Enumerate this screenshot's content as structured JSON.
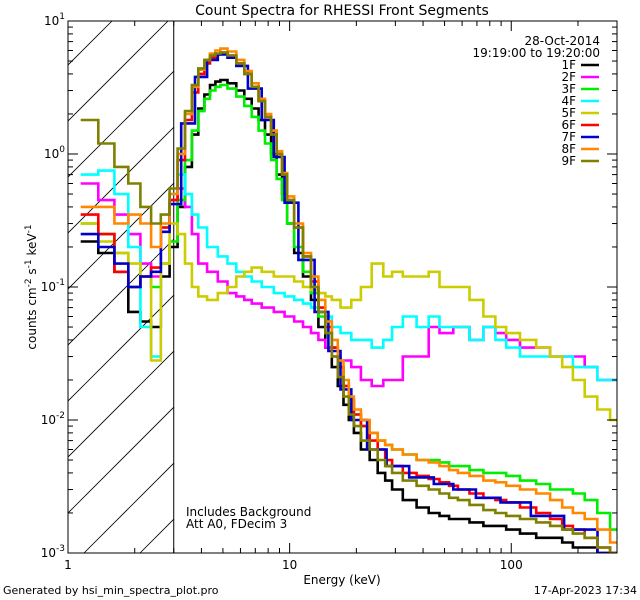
{
  "chart_data": {
    "type": "line",
    "title": "Count Spectra for RHESSI Front Segments",
    "xlabel": "Energy (keV)",
    "ylabel_parts": [
      "counts cm",
      "-2",
      " s",
      "-1",
      " keV",
      "-1"
    ],
    "x_scale": "log",
    "y_scale": "log",
    "xlim": [
      1,
      300
    ],
    "ylim": [
      0.001,
      10
    ],
    "x_ticks": [
      {
        "value": 1,
        "label": "1"
      },
      {
        "value": 10,
        "label": "10"
      },
      {
        "value": 100,
        "label": "100"
      }
    ],
    "y_ticks": [
      {
        "value": 0.001,
        "base": "10",
        "exp": "-3"
      },
      {
        "value": 0.01,
        "base": "10",
        "exp": "-2"
      },
      {
        "value": 0.1,
        "base": "10",
        "exp": "-1"
      },
      {
        "value": 1,
        "base": "10",
        "exp": "0"
      },
      {
        "value": 10,
        "base": "10",
        "exp": "1"
      }
    ],
    "excluded_region": {
      "from": 1,
      "to": 3
    },
    "legend": {
      "position": "top-right",
      "date": "28-Oct-2014",
      "time_range": "19:19:00 to 19:20:00",
      "entries": [
        {
          "name": "1F",
          "color": "#000000"
        },
        {
          "name": "2F",
          "color": "#ff00ff"
        },
        {
          "name": "3F",
          "color": "#00ee00"
        },
        {
          "name": "4F",
          "color": "#00ffff"
        },
        {
          "name": "5F",
          "color": "#cccc00"
        },
        {
          "name": "6F",
          "color": "#ff0000"
        },
        {
          "name": "7F",
          "color": "#0000cc"
        },
        {
          "name": "8F",
          "color": "#ff8800"
        },
        {
          "name": "9F",
          "color": "#808000"
        }
      ]
    },
    "annotations": [
      "Includes Background",
      "Att A0, FDecim 3"
    ],
    "series": [
      {
        "name": "1F",
        "x": [
          1.25,
          1.5,
          1.75,
          2,
          2.25,
          2.5,
          2.75,
          3,
          3.25,
          3.5,
          3.75,
          4,
          4.25,
          4.5,
          4.75,
          5,
          5.5,
          6,
          6.5,
          7,
          7.5,
          8,
          8.5,
          9,
          9.5,
          10,
          11,
          12,
          13,
          14,
          15,
          16,
          17,
          18,
          19,
          20,
          22,
          24,
          26,
          28,
          30,
          35,
          40,
          45,
          50,
          55,
          60,
          70,
          80,
          90,
          100,
          120,
          140,
          160,
          180,
          200,
          230,
          260,
          300
        ],
        "y": [
          0.22,
          0.18,
          0.13,
          0.065,
          0.055,
          0.05,
          0.12,
          0.2,
          0.4,
          0.8,
          1.4,
          2.2,
          2.8,
          3.3,
          3.5,
          3.6,
          3.4,
          3.0,
          2.6,
          2.2,
          1.8,
          1.4,
          1.0,
          0.7,
          0.5,
          0.3,
          0.18,
          0.12,
          0.08,
          0.05,
          0.035,
          0.025,
          0.018,
          0.013,
          0.01,
          0.008,
          0.006,
          0.005,
          0.004,
          0.0035,
          0.003,
          0.0025,
          0.0022,
          0.002,
          0.0019,
          0.0018,
          0.0018,
          0.0017,
          0.0016,
          0.0016,
          0.0015,
          0.0014,
          0.0013,
          0.0013,
          0.0012,
          0.0011,
          0.0011,
          0.001,
          0.001
        ]
      },
      {
        "name": "2F",
        "x": [
          1.25,
          1.5,
          1.75,
          2,
          2.25,
          2.5,
          2.75,
          3,
          3.25,
          3.5,
          3.75,
          4,
          4.5,
          5,
          5.5,
          6,
          6.5,
          7,
          8,
          9,
          10,
          11,
          12,
          13,
          14,
          15,
          16,
          18,
          20,
          22,
          25,
          28,
          30,
          35,
          40,
          45,
          50,
          60,
          70,
          80,
          90,
          100,
          120,
          140,
          160,
          180,
          200,
          230,
          260,
          300
        ],
        "y": [
          0.6,
          0.45,
          0.35,
          0.25,
          0.15,
          0.12,
          0.28,
          0.45,
          0.55,
          0.4,
          0.25,
          0.15,
          0.13,
          0.11,
          0.09,
          0.085,
          0.08,
          0.075,
          0.07,
          0.065,
          0.06,
          0.055,
          0.05,
          0.045,
          0.04,
          0.035,
          0.03,
          0.028,
          0.025,
          0.02,
          0.018,
          0.02,
          0.02,
          0.03,
          0.03,
          0.05,
          0.045,
          0.05,
          0.04,
          0.05,
          0.045,
          0.04,
          0.035,
          0.035,
          0.03,
          0.03,
          0.03,
          0.025,
          0.02,
          0.02
        ]
      },
      {
        "name": "3F",
        "x": [
          1.25,
          1.5,
          1.75,
          2,
          2.25,
          2.5,
          2.75,
          3,
          3.25,
          3.5,
          3.75,
          4,
          4.25,
          4.5,
          4.75,
          5,
          5.5,
          6,
          6.5,
          7,
          7.5,
          8,
          8.5,
          9,
          9.5,
          10,
          11,
          12,
          13,
          14,
          15,
          16,
          17,
          18,
          19,
          20,
          22,
          24,
          26,
          28,
          30,
          35,
          40,
          45,
          50,
          55,
          60,
          70,
          80,
          90,
          100,
          120,
          140,
          160,
          180,
          200,
          230,
          260,
          300
        ],
        "y": [
          0.3,
          0.25,
          0.18,
          0.1,
          0.12,
          0.1,
          0.15,
          0.22,
          0.45,
          0.9,
          1.5,
          2.1,
          2.6,
          3.0,
          3.2,
          3.3,
          3.1,
          2.7,
          2.3,
          1.9,
          1.5,
          1.2,
          0.9,
          0.65,
          0.45,
          0.3,
          0.2,
          0.13,
          0.09,
          0.06,
          0.045,
          0.035,
          0.025,
          0.018,
          0.014,
          0.011,
          0.009,
          0.008,
          0.007,
          0.0065,
          0.006,
          0.0055,
          0.005,
          0.005,
          0.0048,
          0.0045,
          0.0045,
          0.0042,
          0.004,
          0.004,
          0.0038,
          0.0035,
          0.0033,
          0.003,
          0.003,
          0.0028,
          0.0025,
          0.002,
          0.0015
        ]
      },
      {
        "name": "4F",
        "x": [
          1.25,
          1.5,
          1.75,
          2,
          2.25,
          2.5,
          2.75,
          3,
          3.25,
          3.5,
          3.75,
          4,
          4.5,
          5,
          5.5,
          6,
          6.5,
          7,
          8,
          9,
          10,
          11,
          12,
          13,
          14,
          15,
          16,
          18,
          20,
          22,
          25,
          28,
          30,
          35,
          40,
          45,
          50,
          60,
          70,
          80,
          90,
          100,
          120,
          140,
          160,
          180,
          200,
          230,
          260,
          300
        ],
        "y": [
          0.7,
          0.75,
          0.5,
          0.2,
          0.05,
          0.03,
          0.28,
          0.5,
          0.7,
          0.5,
          0.35,
          0.28,
          0.2,
          0.17,
          0.15,
          0.13,
          0.12,
          0.11,
          0.1,
          0.09,
          0.085,
          0.08,
          0.075,
          0.07,
          0.065,
          0.06,
          0.05,
          0.045,
          0.04,
          0.04,
          0.035,
          0.04,
          0.05,
          0.06,
          0.05,
          0.06,
          0.05,
          0.05,
          0.04,
          0.05,
          0.04,
          0.035,
          0.03,
          0.03,
          0.03,
          0.03,
          0.025,
          0.025,
          0.02,
          0.02
        ]
      },
      {
        "name": "5F",
        "x": [
          1.25,
          1.5,
          1.75,
          2,
          2.25,
          2.5,
          2.75,
          3,
          3.25,
          3.5,
          3.75,
          4,
          4.5,
          5,
          5.5,
          6,
          6.5,
          7,
          8,
          9,
          10,
          11,
          12,
          13,
          14,
          15,
          16,
          18,
          20,
          22,
          25,
          28,
          30,
          35,
          40,
          45,
          50,
          60,
          70,
          80,
          90,
          100,
          120,
          140,
          160,
          180,
          200,
          230,
          260,
          300
        ],
        "y": [
          0.3,
          0.22,
          0.18,
          0.15,
          0.12,
          0.028,
          0.15,
          0.3,
          0.25,
          0.15,
          0.1,
          0.085,
          0.08,
          0.09,
          0.1,
          0.12,
          0.13,
          0.14,
          0.13,
          0.12,
          0.12,
          0.11,
          0.1,
          0.095,
          0.09,
          0.085,
          0.08,
          0.07,
          0.08,
          0.1,
          0.15,
          0.12,
          0.13,
          0.12,
          0.12,
          0.13,
          0.1,
          0.1,
          0.08,
          0.06,
          0.05,
          0.045,
          0.04,
          0.035,
          0.03,
          0.025,
          0.02,
          0.015,
          0.012,
          0.01
        ]
      },
      {
        "name": "6F",
        "x": [
          1.25,
          1.5,
          1.75,
          2,
          2.25,
          2.5,
          2.75,
          3,
          3.25,
          3.5,
          3.75,
          4,
          4.25,
          4.5,
          4.75,
          5,
          5.5,
          6,
          6.5,
          7,
          7.5,
          8,
          8.5,
          9,
          9.5,
          10,
          11,
          12,
          13,
          14,
          15,
          16,
          17,
          18,
          19,
          20,
          22,
          24,
          26,
          28,
          30,
          35,
          40,
          45,
          50,
          55,
          60,
          70,
          80,
          90,
          100,
          120,
          140,
          160,
          180,
          200,
          230,
          260,
          300
        ],
        "y": [
          0.35,
          0.25,
          0.13,
          0.1,
          0.12,
          0.14,
          0.28,
          0.45,
          0.9,
          1.8,
          2.9,
          4.0,
          4.8,
          5.3,
          5.6,
          5.8,
          5.5,
          4.8,
          4.0,
          3.2,
          2.5,
          1.9,
          1.4,
          1.0,
          0.7,
          0.45,
          0.28,
          0.17,
          0.11,
          0.07,
          0.05,
          0.035,
          0.025,
          0.018,
          0.014,
          0.011,
          0.009,
          0.007,
          0.006,
          0.005,
          0.0045,
          0.004,
          0.0038,
          0.0036,
          0.0034,
          0.0032,
          0.003,
          0.0028,
          0.0026,
          0.0025,
          0.0024,
          0.0022,
          0.002,
          0.0018,
          0.0016,
          0.0015,
          0.0013,
          0.0011,
          0.001
        ]
      },
      {
        "name": "7F",
        "x": [
          1.25,
          1.5,
          1.75,
          2,
          2.25,
          2.5,
          2.75,
          3,
          3.5,
          4,
          4.5,
          5,
          5.5,
          6,
          7,
          8,
          9,
          10,
          12,
          14,
          16,
          18,
          20,
          25,
          30,
          40,
          50,
          60,
          80,
          100,
          150,
          200,
          300
        ],
        "y": [
          0.25,
          0.2,
          0.15,
          0.1,
          0.12,
          0.13,
          0.26,
          0.42,
          1.7,
          3.8,
          5.1,
          5.6,
          5.3,
          4.6,
          3.1,
          1.8,
          0.95,
          0.43,
          0.16,
          0.065,
          0.033,
          0.017,
          0.01,
          0.006,
          0.0045,
          0.0037,
          0.0033,
          0.003,
          0.0026,
          0.0024,
          0.0019,
          0.0015,
          0.001
        ]
      },
      {
        "name": "8F",
        "x": [
          1.25,
          1.5,
          1.75,
          2,
          2.25,
          2.5,
          2.75,
          3,
          3.25,
          3.5,
          3.75,
          4,
          4.25,
          4.5,
          4.75,
          5,
          5.5,
          6,
          6.5,
          7,
          7.5,
          8,
          8.5,
          9,
          9.5,
          10,
          11,
          12,
          13,
          14,
          15,
          16,
          17,
          18,
          19,
          20,
          22,
          24,
          26,
          28,
          30,
          35,
          40,
          45,
          50,
          55,
          60,
          70,
          80,
          90,
          100,
          120,
          140,
          160,
          180,
          200,
          230,
          260,
          300
        ],
        "y": [
          0.4,
          0.4,
          0.3,
          0.35,
          0.3,
          0.2,
          0.3,
          0.5,
          1.0,
          2.0,
          3.2,
          4.3,
          5.1,
          5.7,
          6.0,
          6.2,
          5.9,
          5.1,
          4.2,
          3.4,
          2.6,
          2.0,
          1.5,
          1.05,
          0.72,
          0.48,
          0.3,
          0.18,
          0.12,
          0.08,
          0.055,
          0.04,
          0.028,
          0.02,
          0.015,
          0.012,
          0.01,
          0.008,
          0.007,
          0.0065,
          0.006,
          0.0055,
          0.005,
          0.0048,
          0.0045,
          0.0042,
          0.004,
          0.0038,
          0.0035,
          0.0034,
          0.0032,
          0.003,
          0.0028,
          0.0025,
          0.0022,
          0.002,
          0.0018,
          0.0015,
          0.0012
        ]
      },
      {
        "name": "9F",
        "x": [
          1.25,
          1.5,
          1.75,
          2,
          2.25,
          2.5,
          2.75,
          3,
          3.25,
          3.5,
          3.75,
          4,
          4.25,
          4.5,
          4.75,
          5,
          5.5,
          6,
          6.5,
          7,
          7.5,
          8,
          8.5,
          9,
          9.5,
          10,
          11,
          12,
          13,
          14,
          15,
          16,
          17,
          18,
          19,
          20,
          22,
          24,
          26,
          28,
          30,
          35,
          40,
          45,
          50,
          55,
          60,
          70,
          80,
          90,
          100,
          120,
          140,
          160,
          180,
          200,
          230,
          260,
          300
        ],
        "y": [
          1.8,
          1.2,
          0.8,
          0.6,
          0.4,
          0.3,
          0.35,
          0.55,
          1.1,
          2.1,
          3.3,
          4.4,
          5.1,
          5.5,
          5.7,
          5.8,
          5.5,
          4.8,
          4.0,
          3.2,
          2.5,
          1.9,
          1.4,
          1.0,
          0.7,
          0.45,
          0.28,
          0.17,
          0.1,
          0.065,
          0.045,
          0.03,
          0.021,
          0.015,
          0.011,
          0.009,
          0.007,
          0.006,
          0.005,
          0.0045,
          0.004,
          0.0035,
          0.0032,
          0.003,
          0.0028,
          0.0026,
          0.0025,
          0.0023,
          0.0021,
          0.002,
          0.0019,
          0.0018,
          0.0017,
          0.0016,
          0.0015,
          0.0014,
          0.0013,
          0.0011,
          0.001
        ]
      }
    ]
  },
  "footer": {
    "left": "Generated by hsi_min_spectra_plot.pro",
    "right": "17-Apr-2023 17:34"
  }
}
